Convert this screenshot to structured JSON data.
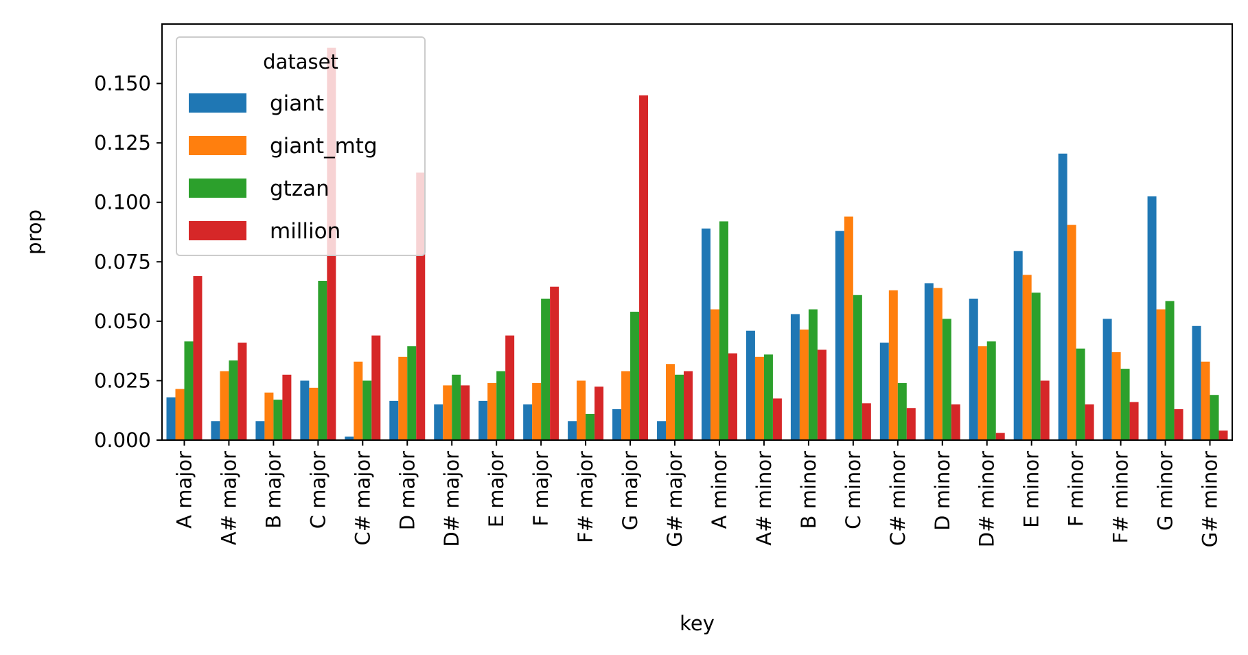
{
  "chart_data": {
    "type": "bar",
    "xlabel": "key",
    "ylabel": "prop",
    "ylim": [
      0,
      0.175
    ],
    "yticks": [
      "0.000",
      "0.025",
      "0.050",
      "0.075",
      "0.100",
      "0.125",
      "0.150"
    ],
    "grid": false,
    "legend": {
      "title": "dataset",
      "placement": "top-left"
    },
    "categories": [
      "A major",
      "A# major",
      "B major",
      "C major",
      "C# major",
      "D major",
      "D# major",
      "E major",
      "F major",
      "F# major",
      "G major",
      "G# major",
      "A minor",
      "A# minor",
      "B minor",
      "C minor",
      "C# minor",
      "D minor",
      "D# minor",
      "E minor",
      "F minor",
      "F# minor",
      "G minor",
      "G# minor"
    ],
    "series": [
      {
        "name": "giant",
        "color": "#1f77b4",
        "values": [
          0.018,
          0.008,
          0.008,
          0.025,
          0.0015,
          0.0165,
          0.015,
          0.0165,
          0.015,
          0.008,
          0.013,
          0.008,
          0.089,
          0.046,
          0.053,
          0.088,
          0.041,
          0.066,
          0.0595,
          0.0795,
          0.1205,
          0.051,
          0.1025,
          0.048
        ]
      },
      {
        "name": "giant_mtg",
        "color": "#ff7f0e",
        "values": [
          0.0215,
          0.029,
          0.02,
          0.022,
          0.033,
          0.035,
          0.023,
          0.024,
          0.024,
          0.025,
          0.029,
          0.032,
          0.055,
          0.035,
          0.0465,
          0.094,
          0.063,
          0.064,
          0.0395,
          0.0695,
          0.0905,
          0.037,
          0.055,
          0.033
        ]
      },
      {
        "name": "gtzan",
        "color": "#2ca02c",
        "values": [
          0.0415,
          0.0335,
          0.017,
          0.067,
          0.025,
          0.0395,
          0.0275,
          0.029,
          0.0595,
          0.011,
          0.054,
          0.0275,
          0.092,
          0.036,
          0.055,
          0.061,
          0.024,
          0.051,
          0.0415,
          0.062,
          0.0385,
          0.03,
          0.0585,
          0.019
        ]
      },
      {
        "name": "million",
        "color": "#d62728",
        "values": [
          0.069,
          0.041,
          0.0275,
          0.165,
          0.044,
          0.1125,
          0.023,
          0.044,
          0.0645,
          0.0225,
          0.145,
          0.029,
          0.0365,
          0.0175,
          0.038,
          0.0155,
          0.0135,
          0.015,
          0.003,
          0.025,
          0.015,
          0.016,
          0.013,
          0.004
        ]
      }
    ]
  }
}
